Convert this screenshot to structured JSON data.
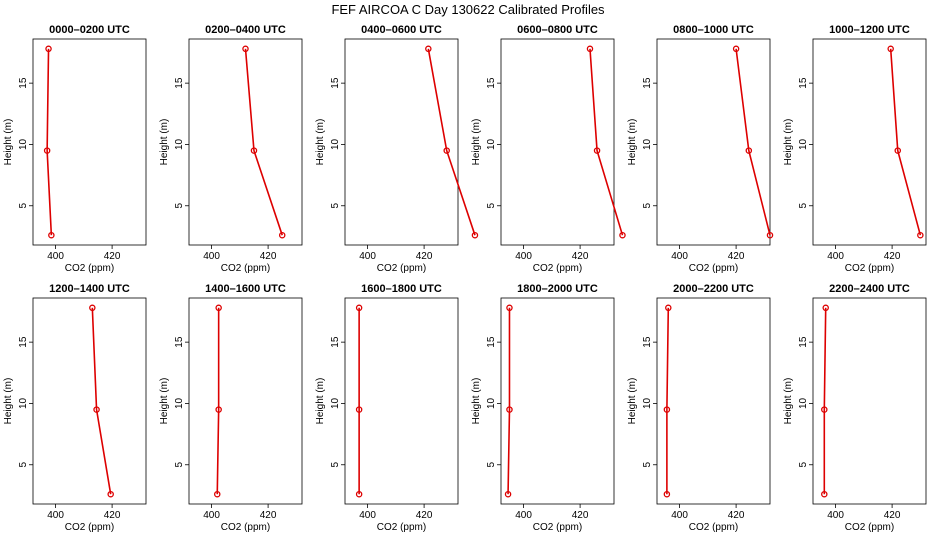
{
  "title": "FEF AIRCOA C  Day 130622  Calibrated Profiles",
  "chart_data": {
    "type": "line",
    "title": "FEF AIRCOA C  Day 130622  Calibrated Profiles",
    "color": "#dd0000",
    "xlabel": "CO2 (ppm)",
    "ylabel": "Height (m)",
    "xlim": [
      392,
      432
    ],
    "ylim": [
      1.8,
      18.6
    ],
    "xticks": [
      400,
      420
    ],
    "yticks": [
      5,
      10,
      15
    ],
    "grid": false,
    "panels": [
      {
        "title": "0000–0200 UTC",
        "x": [
          397.5,
          397.0,
          398.5
        ],
        "y": [
          17.8,
          9.5,
          2.6
        ]
      },
      {
        "title": "0200–0400 UTC",
        "x": [
          412.0,
          415.0,
          425.0
        ],
        "y": [
          17.8,
          9.5,
          2.6
        ]
      },
      {
        "title": "0400–0600 UTC",
        "x": [
          421.5,
          428.0,
          438.0
        ],
        "y": [
          17.8,
          9.5,
          2.6
        ]
      },
      {
        "title": "0600–0800 UTC",
        "x": [
          423.5,
          426.0,
          435.0
        ],
        "y": [
          17.8,
          9.5,
          2.6
        ]
      },
      {
        "title": "0800–1000 UTC",
        "x": [
          420.0,
          424.5,
          432.0
        ],
        "y": [
          17.8,
          9.5,
          2.6
        ]
      },
      {
        "title": "1000–1200 UTC",
        "x": [
          419.5,
          422.0,
          430.0
        ],
        "y": [
          17.8,
          9.5,
          2.6
        ]
      },
      {
        "title": "1200–1400 UTC",
        "x": [
          413.0,
          414.5,
          419.5
        ],
        "y": [
          17.8,
          9.5,
          2.6
        ]
      },
      {
        "title": "1400–1600 UTC",
        "x": [
          402.5,
          402.5,
          402.0
        ],
        "y": [
          17.8,
          9.5,
          2.6
        ]
      },
      {
        "title": "1600–1800 UTC",
        "x": [
          397.0,
          397.0,
          397.0
        ],
        "y": [
          17.8,
          9.5,
          2.6
        ]
      },
      {
        "title": "1800–2000 UTC",
        "x": [
          395.0,
          395.0,
          394.5
        ],
        "y": [
          17.8,
          9.5,
          2.6
        ]
      },
      {
        "title": "2000–2200 UTC",
        "x": [
          396.0,
          395.5,
          395.5
        ],
        "y": [
          17.8,
          9.5,
          2.6
        ]
      },
      {
        "title": "2200–2400 UTC",
        "x": [
          396.5,
          396.0,
          396.0
        ],
        "y": [
          17.8,
          9.5,
          2.6
        ]
      }
    ]
  }
}
